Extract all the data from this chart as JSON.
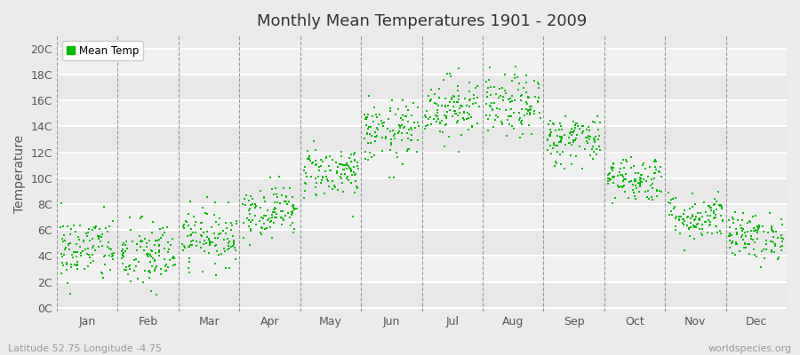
{
  "title": "Monthly Mean Temperatures 1901 - 2009",
  "ylabel": "Temperature",
  "xlabel_labels": [
    "Jan",
    "Feb",
    "Mar",
    "Apr",
    "May",
    "Jun",
    "Jul",
    "Aug",
    "Sep",
    "Oct",
    "Nov",
    "Dec"
  ],
  "ytick_labels": [
    "0C",
    "2C",
    "4C",
    "6C",
    "8C",
    "10C",
    "12C",
    "14C",
    "16C",
    "18C",
    "20C"
  ],
  "ytick_values": [
    0,
    2,
    4,
    6,
    8,
    10,
    12,
    14,
    16,
    18,
    20
  ],
  "ylim": [
    -0.3,
    21
  ],
  "dot_color": "#00bb00",
  "legend_label": "Mean Temp",
  "footer_left": "Latitude 52.75 Longitude -4.75",
  "footer_right": "worldspecies.org",
  "background_color": "#ebebeb",
  "plot_bg_color": "#ebebeb",
  "grid_color": "#ffffff",
  "monthly_means": [
    4.5,
    4.0,
    5.5,
    7.5,
    10.5,
    13.5,
    15.5,
    15.5,
    13.0,
    10.0,
    7.0,
    5.5
  ],
  "monthly_stds": [
    1.3,
    1.4,
    1.1,
    1.0,
    1.0,
    1.2,
    1.2,
    1.2,
    1.0,
    0.9,
    0.9,
    0.9
  ],
  "n_years": 109,
  "seed": 42
}
